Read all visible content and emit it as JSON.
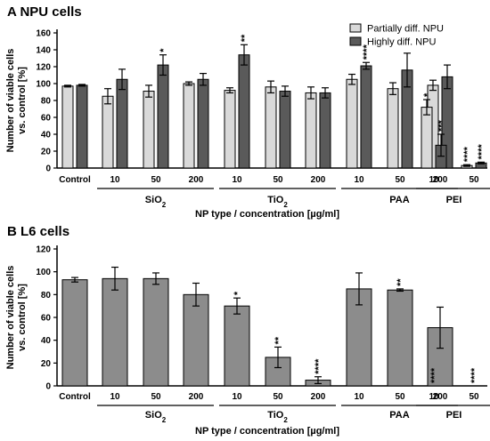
{
  "chart_data": [
    {
      "panel": "A",
      "title": "NPU cells",
      "type": "bar",
      "ylabel": [
        "Number of viable cells",
        "vs. control [%]"
      ],
      "xlabel": "NP type / concentration [µg/ml]",
      "ylim": [
        0,
        160
      ],
      "yticks": [
        "0",
        "20",
        "40",
        "60",
        "80",
        "100",
        "120",
        "140",
        "160"
      ],
      "legend_position": "top-right",
      "series": [
        {
          "name": "Partially diff. NPU",
          "color": "#d9d9d9"
        },
        {
          "name": "Highly diff. NPU",
          "color": "#5a5a5a"
        }
      ],
      "categories": [
        "Control",
        "10",
        "50",
        "200",
        "10",
        "50",
        "200",
        "10",
        "50",
        "200",
        "10",
        "50"
      ],
      "groups": [
        {
          "label": "SiO",
          "subscript": "2",
          "from": 1,
          "to": 3
        },
        {
          "label": "TiO",
          "subscript": "2",
          "from": 4,
          "to": 6
        },
        {
          "label": "PAA",
          "subscript": "",
          "from": 7,
          "to": 9
        },
        {
          "label": "PEI",
          "subscript": "",
          "from": 10,
          "to": 11
        }
      ],
      "values": [
        [
          97,
          85,
          91,
          100,
          92,
          96,
          89,
          105,
          94,
          98,
          72,
          3
        ],
        [
          98,
          105,
          122,
          105,
          134,
          91,
          89,
          121,
          116,
          108,
          27,
          6
        ]
      ],
      "errors": [
        [
          1,
          9,
          7,
          2,
          3,
          7,
          7,
          6,
          7,
          6,
          9,
          1
        ],
        [
          1,
          12,
          12,
          7,
          12,
          6,
          6,
          4,
          20,
          14,
          13,
          1
        ]
      ],
      "significance": [
        [
          "",
          "",
          "",
          "",
          "",
          "",
          "",
          "",
          "",
          "",
          "*",
          "****"
        ],
        [
          "",
          "",
          "*",
          "",
          "**",
          "",
          "",
          "****",
          "",
          "",
          "***",
          "****"
        ]
      ]
    },
    {
      "panel": "B",
      "title": "L6 cells",
      "type": "bar",
      "ylabel": [
        "Number of viable cells",
        "vs. control [%]"
      ],
      "xlabel": "NP type / concentration [µg/ml]",
      "ylim": [
        0,
        120
      ],
      "yticks": [
        "0",
        "20",
        "40",
        "60",
        "80",
        "100",
        "120"
      ],
      "series": [
        {
          "color": "#8c8c8c"
        }
      ],
      "categories": [
        "Control",
        "10",
        "50",
        "200",
        "10",
        "50",
        "200",
        "10",
        "50",
        "200",
        "10",
        "50"
      ],
      "groups": [
        {
          "label": "SiO",
          "subscript": "2",
          "from": 1,
          "to": 3
        },
        {
          "label": "TiO",
          "subscript": "2",
          "from": 4,
          "to": 6
        },
        {
          "label": "PAA",
          "subscript": "",
          "from": 7,
          "to": 9
        },
        {
          "label": "PEI",
          "subscript": "",
          "from": 10,
          "to": 11
        }
      ],
      "values": [
        [
          93,
          94,
          94,
          80,
          70,
          25,
          5,
          85,
          84,
          51,
          0,
          0
        ]
      ],
      "errors": [
        [
          2,
          10,
          5,
          10,
          7,
          9,
          3,
          14,
          1,
          18,
          0,
          0
        ]
      ],
      "significance": [
        [
          "",
          "",
          "",
          "",
          "*",
          "**",
          "****",
          "",
          "**",
          "",
          "****",
          "****"
        ]
      ]
    }
  ]
}
